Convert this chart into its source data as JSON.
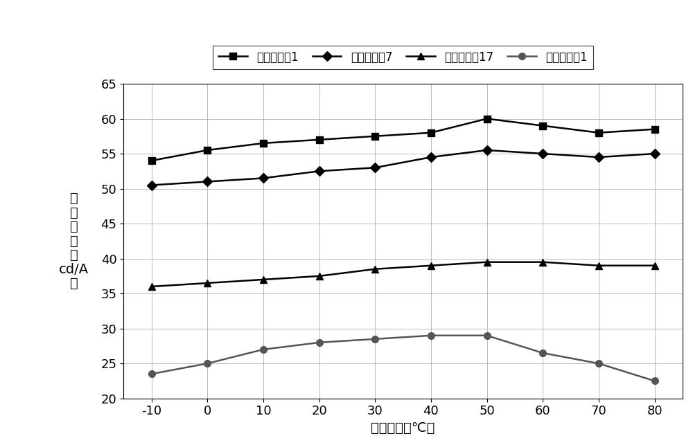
{
  "x": [
    -10,
    0,
    10,
    20,
    30,
    40,
    50,
    60,
    70,
    80
  ],
  "series": [
    {
      "label": "器件实施例1",
      "values": [
        54.0,
        55.5,
        56.5,
        57.0,
        57.5,
        58.0,
        60.0,
        59.0,
        58.0,
        58.5
      ],
      "marker": "s",
      "color": "#000000",
      "linewidth": 1.8,
      "markersize": 7
    },
    {
      "label": "器件实施例7",
      "values": [
        50.5,
        51.0,
        51.5,
        52.5,
        53.0,
        54.5,
        55.5,
        55.0,
        54.5,
        55.0
      ],
      "marker": "D",
      "color": "#000000",
      "linewidth": 1.8,
      "markersize": 7
    },
    {
      "label": "器件实施例17",
      "values": [
        36.0,
        36.5,
        37.0,
        37.5,
        38.5,
        39.0,
        39.5,
        39.5,
        39.0,
        39.0
      ],
      "marker": "^",
      "color": "#000000",
      "linewidth": 1.8,
      "markersize": 7
    },
    {
      "label": "器件比较例1",
      "values": [
        23.5,
        25.0,
        27.0,
        28.0,
        28.5,
        29.0,
        29.0,
        26.5,
        25.0,
        22.5
      ],
      "marker": "o",
      "color": "#555555",
      "linewidth": 1.8,
      "markersize": 7
    }
  ],
  "xlabel": "测量温度（℃）",
  "ylabel_lines": [
    "电",
    "流",
    "效",
    "率",
    "（",
    "cd/A",
    "）"
  ],
  "xlim": [
    -15,
    85
  ],
  "ylim": [
    20.0,
    65.0
  ],
  "yticks": [
    20.0,
    25.0,
    30.0,
    35.0,
    40.0,
    45.0,
    50.0,
    55.0,
    60.0,
    65.0
  ],
  "xticks": [
    -10,
    0,
    10,
    20,
    30,
    40,
    50,
    60,
    70,
    80
  ],
  "grid": true,
  "background_color": "#ffffff",
  "axis_fontsize": 14,
  "tick_fontsize": 13,
  "legend_fontsize": 12
}
